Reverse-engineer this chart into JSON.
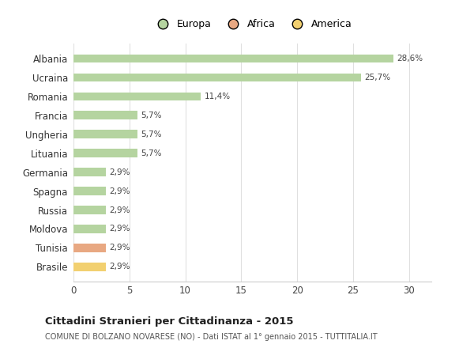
{
  "countries": [
    "Albania",
    "Ucraina",
    "Romania",
    "Francia",
    "Ungheria",
    "Lituania",
    "Germania",
    "Spagna",
    "Russia",
    "Moldova",
    "Tunisia",
    "Brasile"
  ],
  "values": [
    28.6,
    25.7,
    11.4,
    5.7,
    5.7,
    5.7,
    2.9,
    2.9,
    2.9,
    2.9,
    2.9,
    2.9
  ],
  "labels": [
    "28,6%",
    "25,7%",
    "11,4%",
    "5,7%",
    "5,7%",
    "5,7%",
    "2,9%",
    "2,9%",
    "2,9%",
    "2,9%",
    "2,9%",
    "2,9%"
  ],
  "colors": [
    "#b5d4a0",
    "#b5d4a0",
    "#b5d4a0",
    "#b5d4a0",
    "#b5d4a0",
    "#b5d4a0",
    "#b5d4a0",
    "#b5d4a0",
    "#b5d4a0",
    "#b5d4a0",
    "#e8a882",
    "#f2d070"
  ],
  "legend_labels": [
    "Europa",
    "Africa",
    "America"
  ],
  "legend_colors": [
    "#b5d4a0",
    "#e8a882",
    "#f2d070"
  ],
  "title": "Cittadini Stranieri per Cittadinanza - 2015",
  "subtitle": "COMUNE DI BOLZANO NOVARESE (NO) - Dati ISTAT al 1° gennaio 2015 - TUTTITALIA.IT",
  "xlim": [
    0,
    32
  ],
  "xticks": [
    0,
    5,
    10,
    15,
    20,
    25,
    30
  ],
  "background_color": "#ffffff",
  "grid_color": "#e0e0e0",
  "bar_height": 0.45
}
